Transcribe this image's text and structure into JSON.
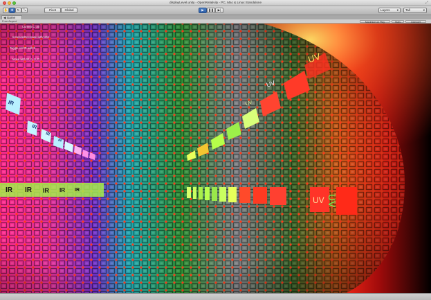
{
  "window": {
    "title": "displayLevel.unity - OpenRelativity - PC, Mac & Linux Standalone",
    "traffic_colors": [
      "#ee5c54",
      "#f6bd38",
      "#5dc941"
    ]
  },
  "toolbar": {
    "hand_icon": "hand-icon",
    "move_icon": "move-icon",
    "rotate_icon": "rotate-icon",
    "scale_icon": "scale-icon",
    "pivot_label": "Pivot",
    "global_label": "Global",
    "play_icon": "play-icon",
    "pause_icon": "pause-icon",
    "step_icon": "step-icon",
    "layers_label": "Layers",
    "layout_label": "Tall"
  },
  "tabs": {
    "game_label": "Game"
  },
  "gameview": {
    "aspect_label": "Free Aspect",
    "maximize_label": "Maximize on Play",
    "stats_label": "Stats",
    "gizmos_label": "Gizmos"
  },
  "hud": {
    "current_c": "Current C: 20",
    "increase_decrease": "Increase/Decrease with N/M",
    "uv_ir": "Toggle UV/IR with E",
    "move": "Move with W, A, S, D"
  },
  "scene": {
    "ir_label": "IR",
    "uv_label": "UV",
    "sphere_colors": [
      "#ff2a8c",
      "#7030c8",
      "#22a8b0",
      "#2f8f34",
      "#8a8a32",
      "#c85a18",
      "#ff2618"
    ]
  }
}
